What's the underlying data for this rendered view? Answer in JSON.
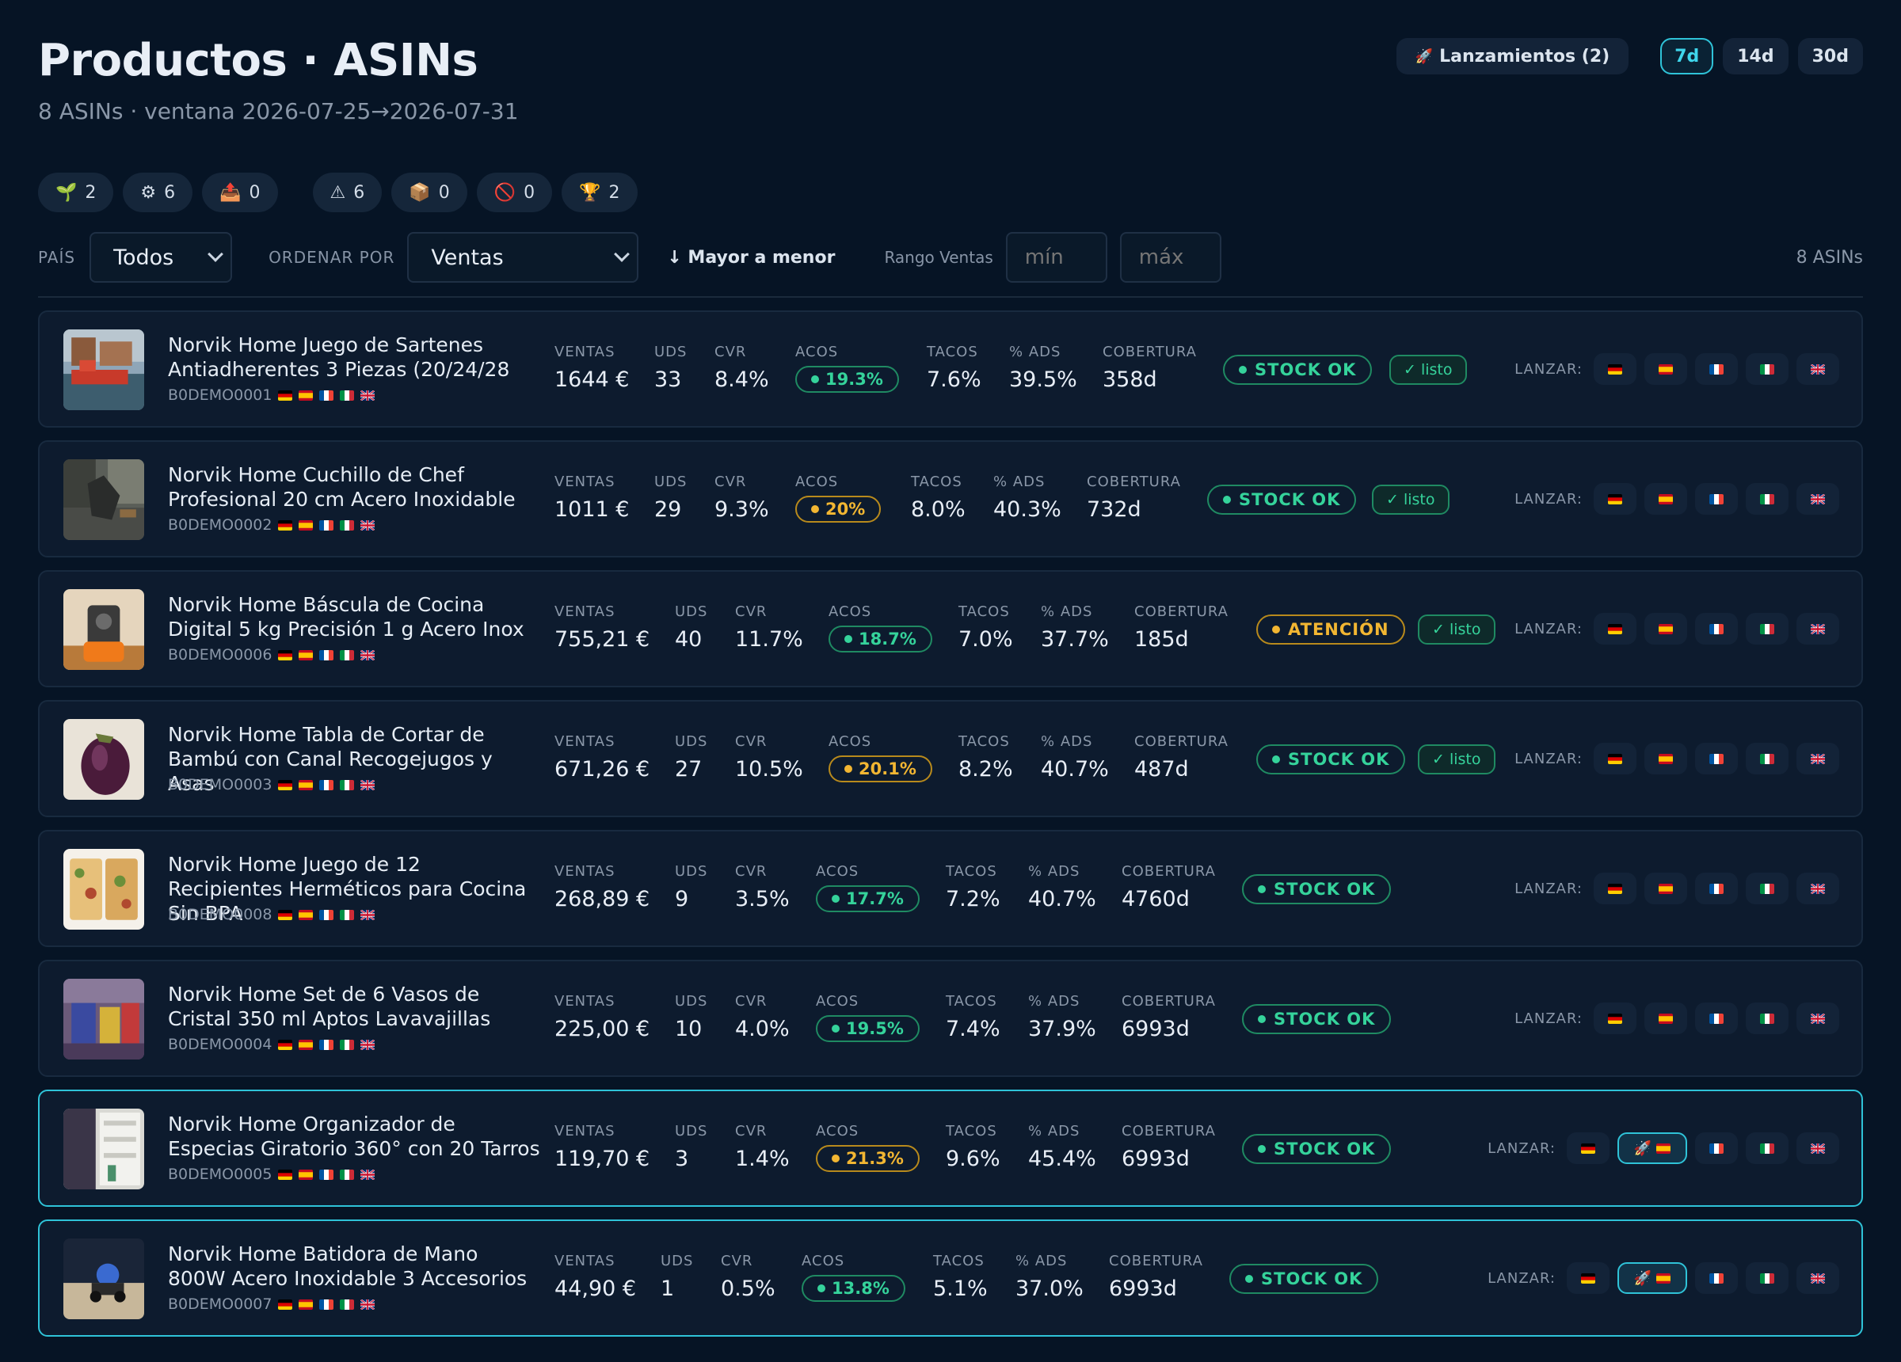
{
  "header": {
    "title": "Productos · ASINs",
    "subtitle": "8 ASINs · ventana 2026-07-25→2026-07-31",
    "launch_button": "Lanzamientos (2)",
    "periods": [
      {
        "label": "7d",
        "active": true
      },
      {
        "label": "14d",
        "active": false
      },
      {
        "label": "30d",
        "active": false
      }
    ]
  },
  "badges": [
    {
      "icon": "seedling-icon",
      "glyph": "🌱",
      "count": "2"
    },
    {
      "icon": "gear-icon",
      "glyph": "⚙",
      "count": "6"
    },
    {
      "icon": "outbox-tray-icon",
      "glyph": "📤",
      "count": "0"
    },
    {
      "icon": "warning-icon",
      "glyph": "⚠",
      "count": "6"
    },
    {
      "icon": "package-icon",
      "glyph": "📦",
      "count": "0"
    },
    {
      "icon": "prohibited-icon",
      "glyph": "🚫",
      "count": "0"
    },
    {
      "icon": "trophy-icon",
      "glyph": "🏆",
      "count": "2"
    }
  ],
  "filters": {
    "country_label": "PAÍS",
    "country_value": "Todos",
    "sort_label": "ORDENAR POR",
    "sort_value": "Ventas",
    "sort_direction": "↓ Mayor a menor",
    "range_label": "Rango Ventas",
    "min_placeholder": "mín",
    "max_placeholder": "máx",
    "count": "8 ASINs"
  },
  "metric_labels": {
    "ventas": "VENTAS",
    "uds": "UDS",
    "cvr": "CVR",
    "acos": "ACOS",
    "tacos": "TACOS",
    "ads": "% ADS",
    "cobertura": "COBERTURA",
    "launch": "LANZAR:"
  },
  "colors": {
    "accent": "#2fc3d8",
    "ok": "#35d39b",
    "warn": "#f2b632",
    "background": "#061425",
    "card": "#0d1b2e"
  },
  "products": [
    {
      "name": "Norvik Home Juego de Sartenes Antiadherentes 3 Piezas (20/24/28",
      "asin": "B0DEMO0001",
      "thumb": "harbor",
      "ventas": "1644 €",
      "uds": "33",
      "cvr": "8.4%",
      "acos": "19.3%",
      "acos_status": "green",
      "tacos": "7.6%",
      "ads": "39.5%",
      "cobertura": "358d",
      "stock": "STOCK OK",
      "stock_status": "ok",
      "listo": "✓ listo",
      "highlighted": false,
      "launched_marketplace": null
    },
    {
      "name": "Norvik Home Cuchillo de Chef Profesional 20 cm Acero Inoxidable",
      "asin": "B0DEMO0002",
      "thumb": "street",
      "ventas": "1011 €",
      "uds": "29",
      "cvr": "9.3%",
      "acos": "20%",
      "acos_status": "orange",
      "tacos": "8.0%",
      "ads": "40.3%",
      "cobertura": "732d",
      "stock": "STOCK OK",
      "stock_status": "ok",
      "listo": "✓ listo",
      "highlighted": false,
      "launched_marketplace": null
    },
    {
      "name": "Norvik Home Báscula de Cocina Digital 5 kg Precisión 1 g Acero Inox",
      "asin": "B0DEMO0006",
      "thumb": "mixer",
      "ventas": "755,21 €",
      "uds": "40",
      "cvr": "11.7%",
      "acos": "18.7%",
      "acos_status": "green",
      "tacos": "7.0%",
      "ads": "37.7%",
      "cobertura": "185d",
      "stock": "ATENCIÓN",
      "stock_status": "warn",
      "listo": "✓ listo",
      "highlighted": false,
      "launched_marketplace": null
    },
    {
      "name": "Norvik Home Tabla de Cortar de Bambú con Canal Recogejugos y Asas",
      "asin": "B0DEMO0003",
      "thumb": "eggplant",
      "ventas": "671,26 €",
      "uds": "27",
      "cvr": "10.5%",
      "acos": "20.1%",
      "acos_status": "orange",
      "tacos": "8.2%",
      "ads": "40.7%",
      "cobertura": "487d",
      "stock": "STOCK OK",
      "stock_status": "ok",
      "listo": "✓ listo",
      "highlighted": false,
      "launched_marketplace": null
    },
    {
      "name": "Norvik Home Juego de 12 Recipientes Herméticos para Cocina Sin BPA",
      "asin": "B0DEMO0008",
      "thumb": "food",
      "ventas": "268,89 €",
      "uds": "9",
      "cvr": "3.5%",
      "acos": "17.7%",
      "acos_status": "green",
      "tacos": "7.2%",
      "ads": "40.7%",
      "cobertura": "4760d",
      "stock": "STOCK OK",
      "stock_status": "ok",
      "listo": "",
      "highlighted": false,
      "launched_marketplace": null
    },
    {
      "name": "Norvik Home Set de 6 Vasos de Cristal 350 ml Aptos Lavavajillas",
      "asin": "B0DEMO0004",
      "thumb": "shelf",
      "ventas": "225,00 €",
      "uds": "10",
      "cvr": "4.0%",
      "acos": "19.5%",
      "acos_status": "green",
      "tacos": "7.4%",
      "ads": "37.9%",
      "cobertura": "6993d",
      "stock": "STOCK OK",
      "stock_status": "ok",
      "listo": "",
      "highlighted": false,
      "launched_marketplace": null
    },
    {
      "name": "Norvik Home Organizador de Especias Giratorio 360° con 20 Tarros",
      "asin": "B0DEMO0005",
      "thumb": "fridge",
      "ventas": "119,70 €",
      "uds": "3",
      "cvr": "1.4%",
      "acos": "21.3%",
      "acos_status": "orange",
      "tacos": "9.6%",
      "ads": "45.4%",
      "cobertura": "6993d",
      "stock": "STOCK OK",
      "stock_status": "ok",
      "listo": "",
      "highlighted": true,
      "launched_marketplace": "es"
    },
    {
      "name": "Norvik Home Batidora de Mano 800W Acero Inoxidable 3 Accesorios",
      "asin": "B0DEMO0007",
      "thumb": "beach",
      "ventas": "44,90 €",
      "uds": "1",
      "cvr": "0.5%",
      "acos": "13.8%",
      "acos_status": "green",
      "tacos": "5.1%",
      "ads": "37.0%",
      "cobertura": "6993d",
      "stock": "STOCK OK",
      "stock_status": "ok",
      "listo": "",
      "highlighted": true,
      "launched_marketplace": "es"
    }
  ],
  "marketplaces": [
    {
      "code": "de",
      "icon": "flag-de-icon"
    },
    {
      "code": "es",
      "icon": "flag-es-icon"
    },
    {
      "code": "fr",
      "icon": "flag-fr-icon"
    },
    {
      "code": "it",
      "icon": "flag-it-icon"
    },
    {
      "code": "uk",
      "icon": "flag-uk-icon"
    }
  ]
}
